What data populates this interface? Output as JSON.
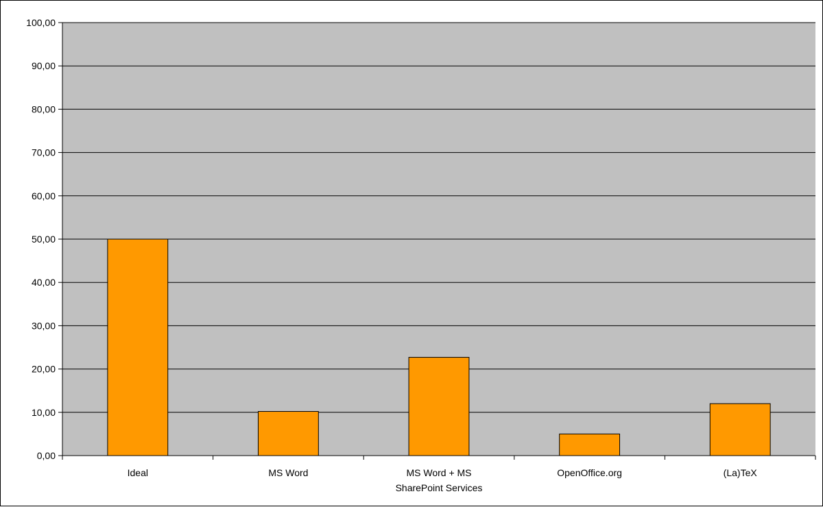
{
  "chart_data": {
    "type": "bar",
    "title": "",
    "xlabel": "",
    "ylabel": "",
    "categories": [
      [
        "Ideal"
      ],
      [
        "MS Word"
      ],
      [
        "MS Word + MS",
        "SharePoint Services"
      ],
      [
        "OpenOffice.org"
      ],
      [
        "(La)TeX"
      ]
    ],
    "values": [
      50.0,
      10.2,
      22.7,
      5.0,
      12.0
    ],
    "ylim": [
      0,
      100
    ],
    "yticks": [
      0,
      10,
      20,
      30,
      40,
      50,
      60,
      70,
      80,
      90,
      100
    ],
    "ytick_labels": [
      "0,00",
      "10,00",
      "20,00",
      "30,00",
      "40,00",
      "50,00",
      "60,00",
      "70,00",
      "80,00",
      "90,00",
      "100,00"
    ],
    "grid": true,
    "legend": false,
    "colors": {
      "bar_fill": "#FF9900",
      "bar_stroke": "#000000",
      "plot_background": "#C0C0C0",
      "gridline": "#000000"
    }
  }
}
